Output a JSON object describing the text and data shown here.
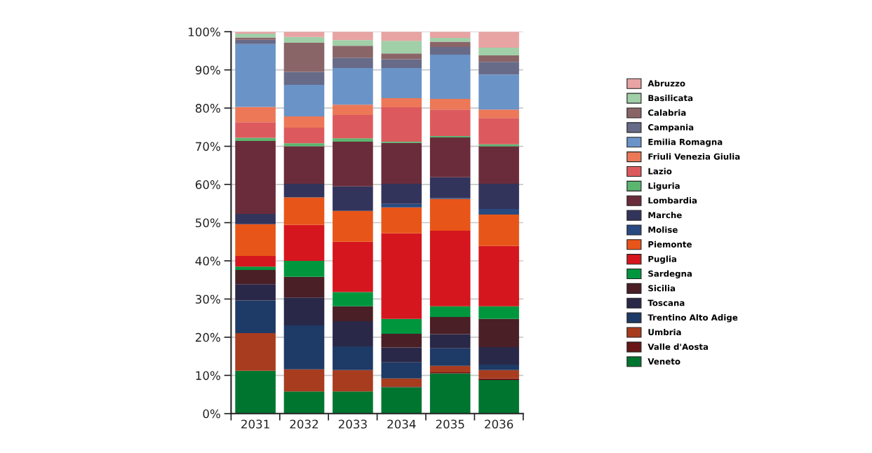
{
  "chart_data": {
    "type": "bar",
    "stacked": true,
    "categories": [
      "2031",
      "2032",
      "2033",
      "2034",
      "2035",
      "2036"
    ],
    "ylim": [
      0,
      100
    ],
    "yticks": [
      {
        "value": 0,
        "label": "0%"
      },
      {
        "value": 10,
        "label": "10%"
      },
      {
        "value": 20,
        "label": "20%"
      },
      {
        "value": 30,
        "label": "30%"
      },
      {
        "value": 40,
        "label": "40%"
      },
      {
        "value": 50,
        "label": "50%"
      },
      {
        "value": 60,
        "label": "60%"
      },
      {
        "value": 70,
        "label": "70%"
      },
      {
        "value": 80,
        "label": "80%"
      },
      {
        "value": 90,
        "label": "90%"
      },
      {
        "value": 100,
        "label": "100%"
      }
    ],
    "grid": "y",
    "legend": "right",
    "series": [
      {
        "name": "Veneto",
        "color": "#007530",
        "values": [
          11.2,
          5.8,
          5.8,
          6.9,
          10.5,
          8.8
        ]
      },
      {
        "name": "Valle d'Aosta",
        "color": "#6a1518",
        "values": [
          0,
          0,
          0,
          0.2,
          0.3,
          0.4
        ]
      },
      {
        "name": "Umbria",
        "color": "#a83c1e",
        "values": [
          9.9,
          5.8,
          5.6,
          2.1,
          1.7,
          2.2
        ]
      },
      {
        "name": "Trentino Alto Adige",
        "color": "#1e3a66",
        "values": [
          8.5,
          11.5,
          6.2,
          4.2,
          4.6,
          1.4
        ]
      },
      {
        "name": "Toscana",
        "color": "#2a2848",
        "values": [
          4.3,
          7.3,
          6.6,
          3.9,
          3.7,
          4.6
        ]
      },
      {
        "name": "Sicilia",
        "color": "#4a1f26",
        "values": [
          3.7,
          5.4,
          3.9,
          3.6,
          4.5,
          7.4
        ]
      },
      {
        "name": "Sardegna",
        "color": "#00963e",
        "values": [
          0.9,
          4.2,
          3.7,
          3.9,
          2.8,
          3.3
        ]
      },
      {
        "name": "Puglia",
        "color": "#d5161e",
        "values": [
          2.8,
          9.4,
          13.2,
          22.4,
          19.8,
          15.8
        ]
      },
      {
        "name": "Piemonte",
        "color": "#e85518",
        "values": [
          8.3,
          7.2,
          8.1,
          6.8,
          8.3,
          8.2
        ]
      },
      {
        "name": "Molise",
        "color": "#284a80",
        "values": [
          0,
          0,
          0,
          0.9,
          0.2,
          1.5
        ]
      },
      {
        "name": "Marche",
        "color": "#33345c",
        "values": [
          2.7,
          3.6,
          6.4,
          5.3,
          5.5,
          6.6
        ]
      },
      {
        "name": "Lombardia",
        "color": "#6a2c3a",
        "values": [
          19.1,
          9.8,
          11.7,
          10.7,
          10.4,
          9.8
        ]
      },
      {
        "name": "Liguria",
        "color": "#5bb56f",
        "values": [
          0.8,
          0.8,
          0.9,
          0.3,
          0.4,
          0.5
        ]
      },
      {
        "name": "Lazio",
        "color": "#dc5a5e",
        "values": [
          4.1,
          4.1,
          6.1,
          9.0,
          6.9,
          6.9
        ]
      },
      {
        "name": "Friuli Venezia Giulia",
        "color": "#ec7858",
        "values": [
          4.0,
          2.9,
          2.7,
          2.4,
          2.8,
          2.2
        ]
      },
      {
        "name": "Emilia Romagna",
        "color": "#6a93c8",
        "values": [
          16.5,
          8.3,
          9.6,
          7.9,
          11.6,
          9.2
        ]
      },
      {
        "name": "Campania",
        "color": "#676b88",
        "values": [
          1.1,
          3.4,
          2.7,
          2.3,
          2.0,
          3.3
        ]
      },
      {
        "name": "Calabria",
        "color": "#8a6567",
        "values": [
          0.6,
          7.6,
          3.1,
          1.5,
          1.4,
          1.7
        ]
      },
      {
        "name": "Basilicata",
        "color": "#a0cfa8",
        "values": [
          1.0,
          1.5,
          1.5,
          3.3,
          1.0,
          2.0
        ]
      },
      {
        "name": "Abruzzo",
        "color": "#e8a3a3",
        "values": [
          0.5,
          1.4,
          2.2,
          2.4,
          1.6,
          4.2
        ]
      }
    ]
  }
}
